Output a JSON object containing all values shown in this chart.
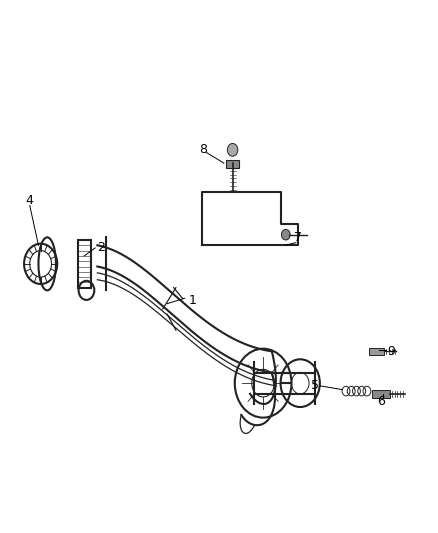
{
  "title": "",
  "background_color": "#ffffff",
  "fig_width": 4.39,
  "fig_height": 5.33,
  "dpi": 100,
  "line_color": "#222222",
  "label_color": "#000000",
  "label_fontsize": 9
}
